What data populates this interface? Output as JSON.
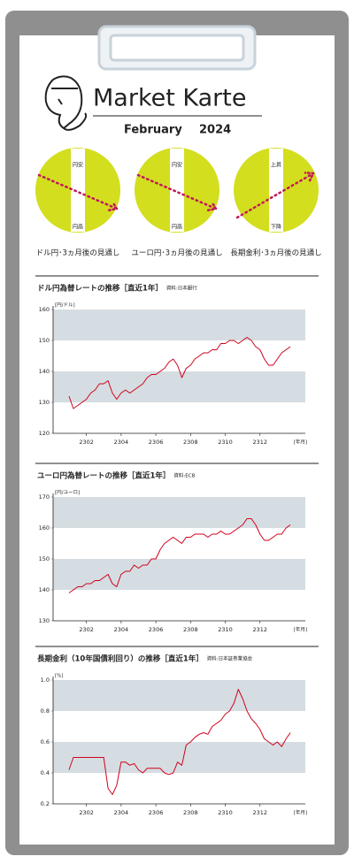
{
  "header": {
    "title": "Market Karte",
    "month": "February",
    "year": "2024"
  },
  "indicators": [
    {
      "top": "円安",
      "bottom": "円高",
      "caption": "ドル円･3ヵ月後の見通し"
    },
    {
      "top": "円安",
      "bottom": "円高",
      "caption": "ユーロ円･3ヵ月後の見通し"
    },
    {
      "top": "上昇",
      "bottom": "下降",
      "caption": "長期金利･3ヵ月後の見通し"
    }
  ],
  "chart_data": [
    {
      "type": "line",
      "title": "ドル円為替レートの推移［直近1年］",
      "source": "資料:日本銀行",
      "y_unit": "[円/ドル]",
      "x_unit": "[年月]",
      "color": "#d0021b",
      "categories": [
        null,
        null,
        null,
        null,
        "2302",
        null,
        null,
        null,
        null,
        null,
        null,
        null,
        "2304",
        null,
        null,
        null,
        null,
        null,
        null,
        null,
        "2306",
        null,
        null,
        null,
        null,
        null,
        null,
        null,
        "2308",
        null,
        null,
        null,
        null,
        null,
        null,
        null,
        "2310",
        null,
        null,
        null,
        null,
        null,
        null,
        null,
        "2312",
        null,
        null,
        null,
        null,
        null,
        null,
        null
      ],
      "values": [
        132,
        128,
        129,
        130,
        131,
        133,
        134,
        136,
        136,
        137,
        133,
        131,
        133,
        134,
        133,
        134,
        135,
        136,
        138,
        139,
        139,
        140,
        141,
        143,
        144,
        142,
        138,
        141,
        142,
        144,
        145,
        146,
        146,
        147,
        147,
        149,
        149,
        150,
        150,
        149,
        150,
        151,
        150,
        148,
        147,
        144,
        142,
        142,
        144,
        146,
        147,
        148
      ],
      "ylim": [
        120,
        160
      ],
      "yticks": [
        120,
        130,
        140,
        150,
        160
      ]
    },
    {
      "type": "line",
      "title": "ユーロ円為替レートの推移［直近1年］",
      "source": "資料:ECB",
      "y_unit": "[円/ユーロ]",
      "x_unit": "[年月]",
      "color": "#d0021b",
      "categories": [
        null,
        null,
        null,
        null,
        "2302",
        null,
        null,
        null,
        null,
        null,
        null,
        null,
        "2304",
        null,
        null,
        null,
        null,
        null,
        null,
        null,
        "2306",
        null,
        null,
        null,
        null,
        null,
        null,
        null,
        "2308",
        null,
        null,
        null,
        null,
        null,
        null,
        null,
        "2310",
        null,
        null,
        null,
        null,
        null,
        null,
        null,
        "2312",
        null,
        null,
        null,
        null,
        null,
        null,
        null
      ],
      "values": [
        139,
        140,
        141,
        141,
        142,
        142,
        143,
        143,
        144,
        145,
        142,
        141,
        145,
        146,
        146,
        148,
        147,
        148,
        148,
        150,
        150,
        153,
        155,
        156,
        157,
        156,
        155,
        157,
        157,
        158,
        158,
        158,
        157,
        158,
        158,
        159,
        158,
        158,
        159,
        160,
        161,
        163,
        163,
        161,
        158,
        156,
        156,
        157,
        158,
        158,
        160,
        161
      ],
      "ylim": [
        130,
        170
      ],
      "yticks": [
        130,
        140,
        150,
        160,
        170
      ]
    },
    {
      "type": "line",
      "title": "長期金利（10年国債利回り）の推移［直近1年］",
      "source": "資料:日本証券業協会",
      "y_unit": "[%]",
      "x_unit": "[年月]",
      "color": "#d0021b",
      "categories": [
        null,
        null,
        null,
        null,
        "2302",
        null,
        null,
        null,
        null,
        null,
        null,
        null,
        "2304",
        null,
        null,
        null,
        null,
        null,
        null,
        null,
        "2306",
        null,
        null,
        null,
        null,
        null,
        null,
        null,
        "2308",
        null,
        null,
        null,
        null,
        null,
        null,
        null,
        "2310",
        null,
        null,
        null,
        null,
        null,
        null,
        null,
        "2312",
        null,
        null,
        null,
        null,
        null,
        null,
        null
      ],
      "values": [
        0.42,
        0.5,
        0.5,
        0.5,
        0.5,
        0.5,
        0.5,
        0.5,
        0.5,
        0.3,
        0.26,
        0.32,
        0.47,
        0.47,
        0.45,
        0.46,
        0.42,
        0.4,
        0.43,
        0.43,
        0.43,
        0.43,
        0.4,
        0.39,
        0.4,
        0.47,
        0.45,
        0.58,
        0.6,
        0.63,
        0.65,
        0.66,
        0.65,
        0.7,
        0.72,
        0.74,
        0.78,
        0.8,
        0.85,
        0.94,
        0.88,
        0.8,
        0.75,
        0.72,
        0.68,
        0.62,
        0.6,
        0.58,
        0.6,
        0.57,
        0.62,
        0.66
      ],
      "ylim": [
        0.2,
        1.0
      ],
      "yticks": [
        0.2,
        0.4,
        0.6,
        0.8,
        {
          "value": 1.0,
          "label": "1.0"
        }
      ]
    }
  ]
}
